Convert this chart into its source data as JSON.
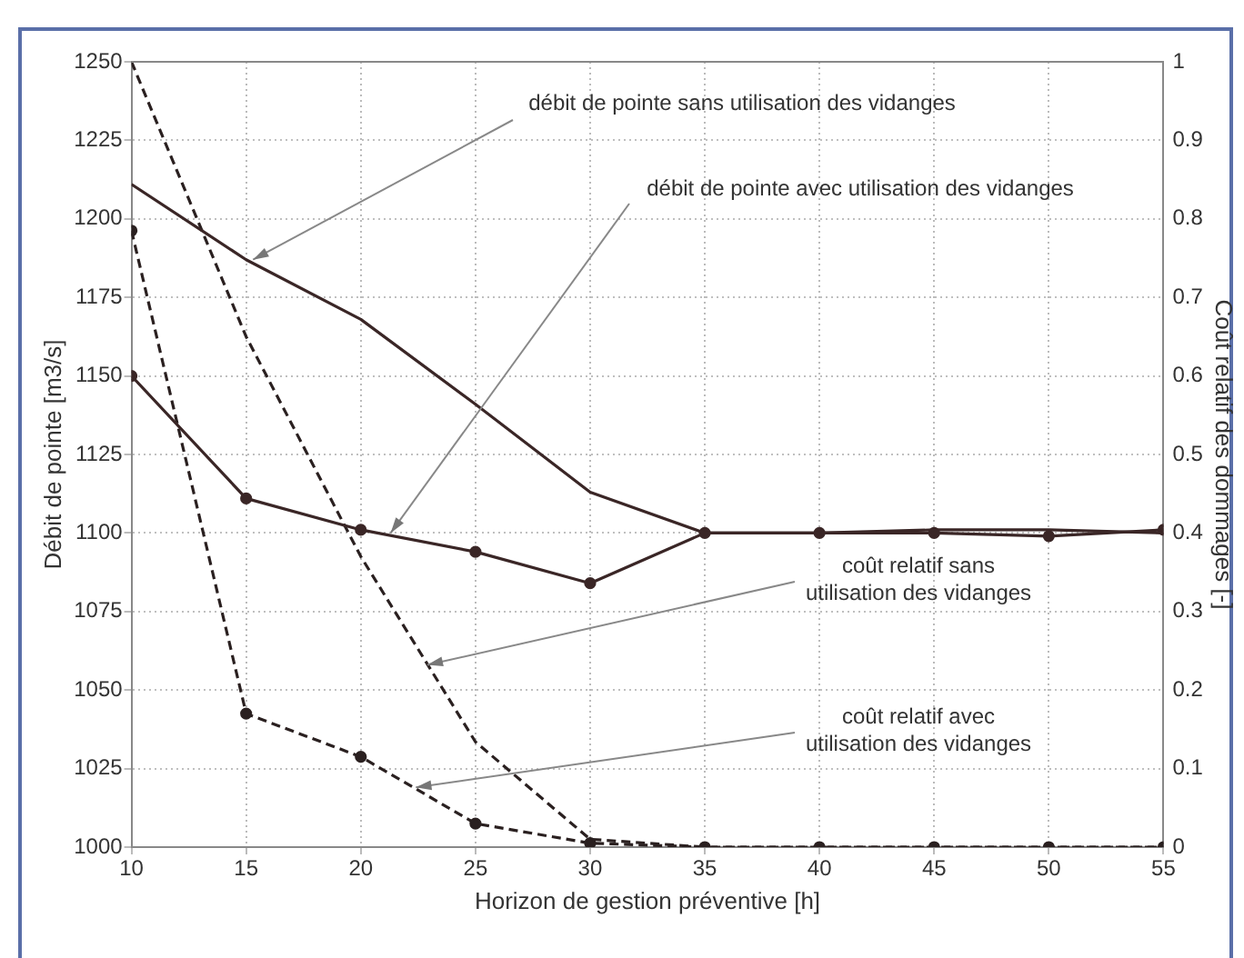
{
  "chart_data": {
    "type": "line",
    "xlabel": "Horizon de gestion préventive [h]",
    "ylabel": "Débit de pointe [m3/s]",
    "y2label": "Coût relatif des dommages [-]",
    "x": [
      10,
      15,
      20,
      25,
      30,
      35,
      40,
      45,
      50,
      55
    ],
    "series": [
      {
        "color": "#3a2626",
        "values": [
          1211,
          1187,
          1168,
          1141,
          1113,
          1100,
          1100,
          1101,
          1101,
          1100
        ],
        "line_style": "solid"
      },
      {
        "color": "#3a2626",
        "values": [
          1150,
          1111,
          1101,
          1094,
          1084,
          1100,
          1100,
          1100,
          1099,
          1101
        ],
        "marker": "circle",
        "line_style": "solid"
      },
      {
        "color": "#2a2020",
        "values": [
          1.0,
          0.65,
          0.37,
          0.134,
          0.01,
          0,
          0,
          0,
          0,
          0
        ],
        "axis": "y2",
        "line_style": "dashed"
      },
      {
        "color": "#2a2020",
        "values": [
          0.785,
          0.17,
          0.115,
          0.03,
          0.005,
          0,
          0,
          0,
          0,
          0
        ],
        "axis": "y2",
        "marker": "circle",
        "line_style": "dashed"
      }
    ],
    "xlim": [
      10,
      55
    ],
    "xticks": [
      10,
      15,
      20,
      25,
      30,
      35,
      40,
      45,
      50,
      55
    ],
    "ylim": [
      1000,
      1250
    ],
    "yticks": [
      1000,
      1025,
      1050,
      1075,
      1100,
      1125,
      1150,
      1175,
      1200,
      1225,
      1250
    ],
    "y2lim": [
      0,
      1
    ],
    "y2ticks": [
      0,
      0.1,
      0.2,
      0.3,
      0.4,
      0.5,
      0.6,
      0.7,
      0.8,
      0.9,
      1
    ],
    "grid": true,
    "legend": false,
    "annotations": [
      {
        "text": "débit de pointe sans utilisation des vidanges",
        "x": 15.3,
        "y": 1187
      },
      {
        "text": "débit de pointe avec utilisation des vidanges",
        "x": 21.3,
        "y": 1100
      },
      {
        "text": "coût relatif sans\nutilisation des vidanges",
        "x": 22.9,
        "y": 1058
      },
      {
        "text": "coût relatif avec\nutilisation des vidanges",
        "x": 22.4,
        "y": 1019
      }
    ]
  }
}
